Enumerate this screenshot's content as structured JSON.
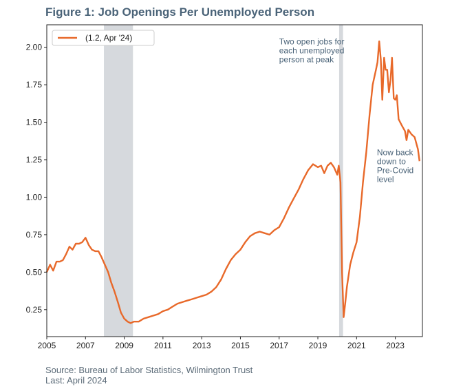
{
  "title": "Figure 1: Job Openings Per Unemployed Person",
  "source_line": "Source: Bureau of Labor Statistics, Wilmington Trust",
  "last_line": "Last: April 2024",
  "chart_data": {
    "type": "line",
    "title": "Figure 1: Job Openings Per Unemployed Person",
    "xlabel": "",
    "ylabel": "",
    "xlim": [
      2005,
      2024.4
    ],
    "ylim": [
      0.07,
      2.15
    ],
    "x_ticks": [
      2005,
      2007,
      2009,
      2011,
      2013,
      2015,
      2017,
      2019,
      2021,
      2023
    ],
    "y_ticks": [
      0.25,
      0.5,
      0.75,
      1.0,
      1.25,
      1.5,
      1.75,
      2.0
    ],
    "y_tick_labels": [
      "0.25",
      "0.50",
      "0.75",
      "1.00",
      "1.25",
      "1.50",
      "1.75",
      "2.00"
    ],
    "grid": false,
    "legend_position": "top-left",
    "shaded_periods": [
      [
        2007.95,
        2009.45
      ],
      [
        2020.1,
        2020.3
      ]
    ],
    "annotations": [
      {
        "lines": [
          "Two open jobs for",
          "each unemployed",
          "person at peak"
        ],
        "x": 2017.0,
        "y": 2.02
      },
      {
        "lines": [
          "Now back",
          "down to",
          "Pre-Covid",
          "level"
        ],
        "x": 2022.05,
        "y": 1.28
      }
    ],
    "series": [
      {
        "name": "(1.2, Apr '24)",
        "color": "#e8692a",
        "x": [
          2005.0,
          2005.17,
          2005.33,
          2005.5,
          2005.67,
          2005.83,
          2006.0,
          2006.17,
          2006.33,
          2006.5,
          2006.67,
          2006.83,
          2007.0,
          2007.17,
          2007.33,
          2007.5,
          2007.67,
          2007.83,
          2008.0,
          2008.17,
          2008.33,
          2008.5,
          2008.67,
          2008.83,
          2009.0,
          2009.17,
          2009.33,
          2009.5,
          2009.75,
          2010.0,
          2010.25,
          2010.5,
          2010.75,
          2011.0,
          2011.25,
          2011.5,
          2011.75,
          2012.0,
          2012.25,
          2012.5,
          2012.75,
          2013.0,
          2013.25,
          2013.5,
          2013.75,
          2014.0,
          2014.25,
          2014.5,
          2014.75,
          2015.0,
          2015.25,
          2015.5,
          2015.75,
          2016.0,
          2016.25,
          2016.5,
          2016.75,
          2017.0,
          2017.25,
          2017.5,
          2017.75,
          2018.0,
          2018.25,
          2018.5,
          2018.75,
          2019.0,
          2019.17,
          2019.33,
          2019.5,
          2019.67,
          2019.83,
          2020.0,
          2020.08,
          2020.17,
          2020.25,
          2020.33,
          2020.42,
          2020.5,
          2020.67,
          2020.83,
          2021.0,
          2021.17,
          2021.33,
          2021.5,
          2021.67,
          2021.83,
          2022.0,
          2022.08,
          2022.17,
          2022.25,
          2022.33,
          2022.42,
          2022.5,
          2022.58,
          2022.67,
          2022.75,
          2022.83,
          2022.92,
          2023.0,
          2023.08,
          2023.17,
          2023.33,
          2023.5,
          2023.58,
          2023.67,
          2023.83,
          2024.0,
          2024.17,
          2024.25
        ],
        "values": [
          0.5,
          0.55,
          0.51,
          0.57,
          0.57,
          0.58,
          0.62,
          0.67,
          0.65,
          0.69,
          0.69,
          0.7,
          0.73,
          0.68,
          0.65,
          0.64,
          0.64,
          0.6,
          0.55,
          0.5,
          0.43,
          0.37,
          0.3,
          0.23,
          0.19,
          0.17,
          0.16,
          0.17,
          0.17,
          0.19,
          0.2,
          0.21,
          0.22,
          0.24,
          0.25,
          0.27,
          0.29,
          0.3,
          0.31,
          0.32,
          0.33,
          0.34,
          0.35,
          0.37,
          0.4,
          0.45,
          0.52,
          0.58,
          0.62,
          0.65,
          0.7,
          0.74,
          0.76,
          0.77,
          0.76,
          0.75,
          0.78,
          0.8,
          0.86,
          0.93,
          0.99,
          1.05,
          1.12,
          1.18,
          1.22,
          1.2,
          1.21,
          1.16,
          1.21,
          1.23,
          1.2,
          1.15,
          1.21,
          1.1,
          0.5,
          0.2,
          0.3,
          0.4,
          0.55,
          0.63,
          0.7,
          0.87,
          1.1,
          1.3,
          1.55,
          1.75,
          1.85,
          1.9,
          2.04,
          1.92,
          1.65,
          1.93,
          1.85,
          1.85,
          1.7,
          1.78,
          1.93,
          1.66,
          1.65,
          1.68,
          1.52,
          1.48,
          1.44,
          1.38,
          1.45,
          1.42,
          1.4,
          1.32,
          1.24
        ]
      }
    ]
  }
}
